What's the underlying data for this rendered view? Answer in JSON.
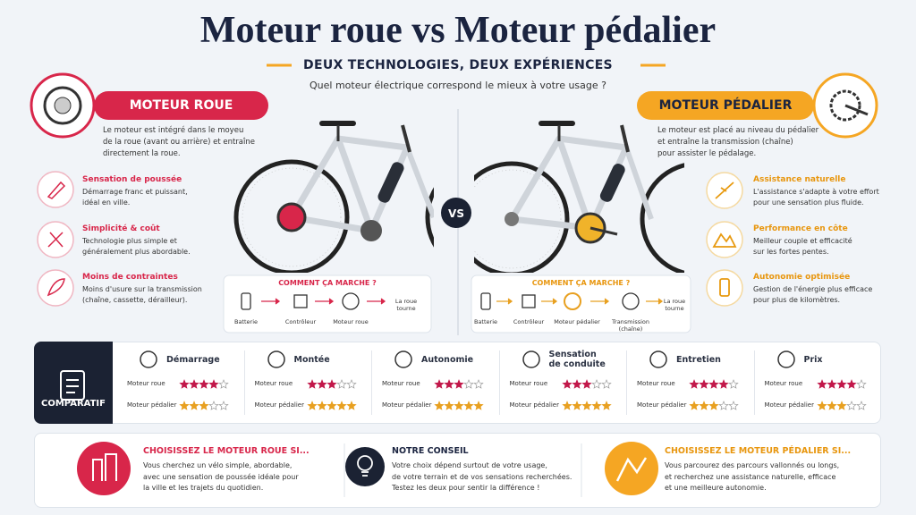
{
  "header": {
    "title": "Moteur roue vs Moteur pédalier",
    "subtitle": "DEUX TECHNOLOGIES, DEUX EXPÉRIENCES",
    "question": "Quel moteur électrique correspond le mieux à votre usage ?"
  },
  "left": {
    "badge": "MOTEUR ROUE",
    "description": "Le moteur est intégré dans le moyeu\nde la roue (avant ou arrière) et entraîne\ndirectement la roue.",
    "features": [
      {
        "title": "Sensation de poussée",
        "text": "Démarrage franc et puissant,\nidéal en ville."
      },
      {
        "title": "Simplicité & coût",
        "text": "Technologie plus simple et\ngénéralement plus abordable."
      },
      {
        "title": "Moins de contraintes",
        "text": "Moins d'usure sur la transmission\n(chaîne, cassette, dérailleur)."
      }
    ],
    "how": {
      "title": "COMMENT ÇA MARCHE ?",
      "steps": [
        "Batterie",
        "Contrôleur",
        "Moteur roue",
        "La roue\ntourne"
      ]
    }
  },
  "vs": "VS",
  "right": {
    "badge": "MOTEUR PÉDALIER",
    "description": "Le moteur est placé au niveau du pédalier\net entraîne la transmission (chaîne)\npour assister le pédalage.",
    "features": [
      {
        "title": "Assistance naturelle",
        "text": "L'assistance s'adapte à votre effort\npour une sensation plus fluide."
      },
      {
        "title": "Performance en côte",
        "text": "Meilleur couple et efficacité\nsur les fortes pentes."
      },
      {
        "title": "Autonomie optimisée",
        "text": "Gestion de l'énergie plus efficace\npour plus de kilomètres."
      }
    ],
    "how": {
      "title": "COMMENT ÇA MARCHE ?",
      "steps": [
        "Batterie",
        "Contrôleur",
        "Moteur pédalier",
        "Transmission\n(chaîne)",
        "La roue\ntourne"
      ]
    }
  },
  "comparatif": {
    "label": "COMPARATIF",
    "max_rating": 5,
    "row_labels": [
      "Moteur roue",
      "Moteur pédalier"
    ],
    "criteria": [
      {
        "name": "Démarrage",
        "ratings": [
          4,
          3
        ]
      },
      {
        "name": "Montée",
        "ratings": [
          3,
          5
        ]
      },
      {
        "name": "Autonomie",
        "ratings": [
          3,
          5
        ]
      },
      {
        "name": "Sensation\nde conduite",
        "ratings": [
          3,
          5
        ]
      },
      {
        "name": "Entretien",
        "ratings": [
          4,
          3
        ]
      },
      {
        "name": "Prix",
        "ratings": [
          4,
          3
        ]
      }
    ]
  },
  "footer": [
    {
      "title": "CHOISISSEZ LE MOTEUR ROUE SI...",
      "text": "Vous cherchez un vélo simple, abordable,\navec une sensation de poussée idéale pour\nla ville et les trajets du quotidien."
    },
    {
      "title": "NOTRE CONSEIL",
      "text": "Votre choix dépend surtout de votre usage,\nde votre terrain et de vos sensations recherchées.\nTestez les deux pour sentir la différence !"
    },
    {
      "title": "CHOISISSEZ LE MOTEUR PÉDALIER SI...",
      "text": "Vous parcourez des parcours vallonnés ou longs,\net recherchez une assistance naturelle, efficace\net une meilleure autonomie."
    }
  ]
}
